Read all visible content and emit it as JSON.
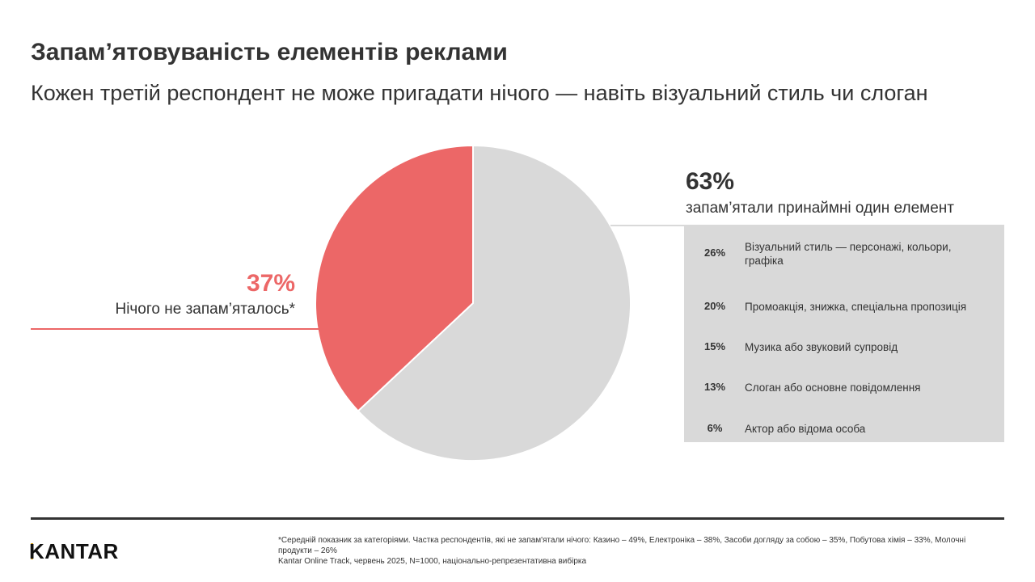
{
  "title": "Запам’ятовуваність елементів реклами",
  "subtitle": "Кожен третій респондент не може пригадати нічого — навіть візуальний стиль чи слоган",
  "chart_data": {
    "type": "pie",
    "slices": [
      {
        "label": "запам’ятали принаймні один елемент",
        "value": 63,
        "value_label": "63%",
        "color": "#d9d9d9"
      },
      {
        "label": "Нічого не запам’яталось*",
        "value": 37,
        "value_label": "37%",
        "color": "#ec6767"
      }
    ],
    "breakdown": [
      {
        "value": "26%",
        "label": "Візуальний стиль — персонажі, кольори, графіка"
      },
      {
        "value": "20%",
        "label": "Промоакція, знижка, спеціальна пропозиція"
      },
      {
        "value": "15%",
        "label": "Музика або звуковий супровід"
      },
      {
        "value": "13%",
        "label": "Слоган або основне повідомлення"
      },
      {
        "value": "6%",
        "label": "Актор або відома особа"
      }
    ]
  },
  "footer": {
    "note": "*Середній показник за категоріями. Частка респондентів, які не запам'ятали нічого: Казино – 49%, Електроніка – 38%, Засоби догляду за собою – 35%, Побутова хімія – 33%, Молочні продукти – 26%",
    "source": "Kantar Online Track, червень 2025, N=1000, національно-репрезентативна вибірка"
  },
  "logo": "KANTAR",
  "colors": {
    "accent": "#ec6767",
    "grey": "#d9d9d9",
    "logo_bar": "#d8a21a"
  }
}
